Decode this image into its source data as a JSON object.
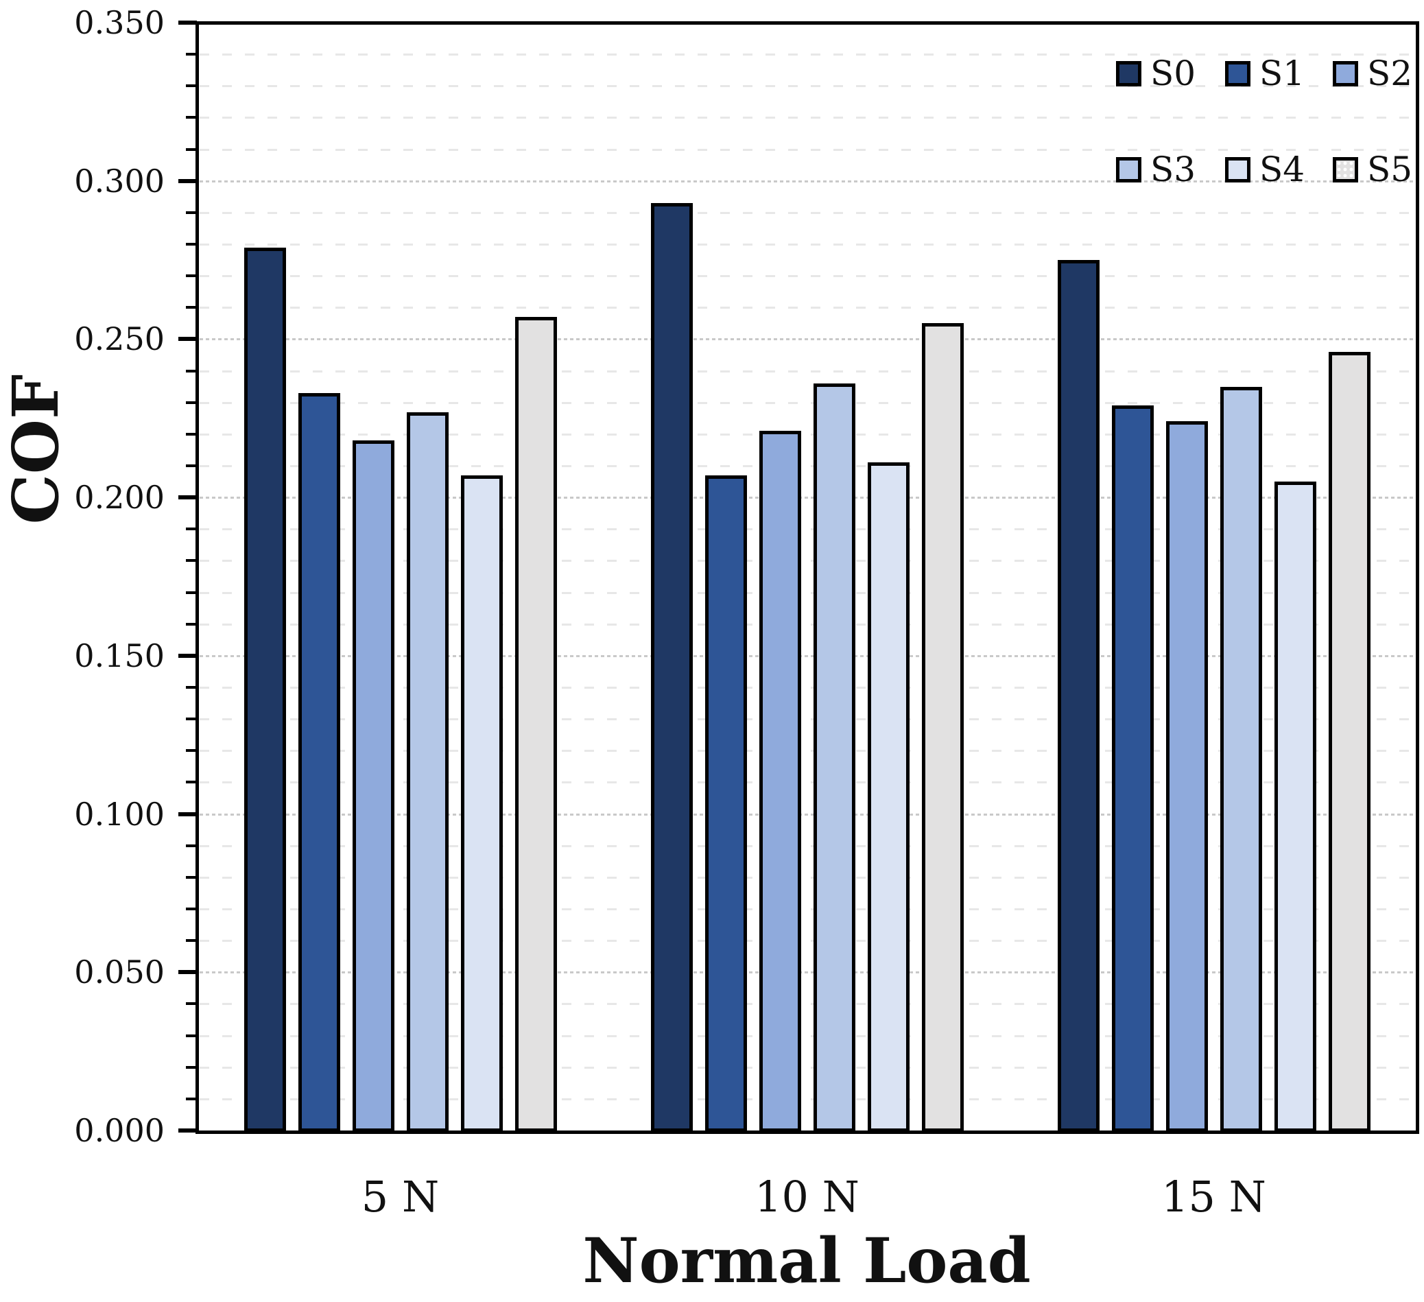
{
  "chart_data": {
    "type": "bar",
    "title": "",
    "xlabel": "Normal Load",
    "ylabel": "COF",
    "categories": [
      "5 N",
      "10 N",
      "15 N"
    ],
    "series": [
      {
        "name": "S0",
        "color": "#1F3864",
        "texture": "solid",
        "values": [
          0.279,
          0.293,
          0.275
        ]
      },
      {
        "name": "S1",
        "color": "#2E5596",
        "texture": "solid",
        "values": [
          0.233,
          0.207,
          0.229
        ]
      },
      {
        "name": "S2",
        "color": "#8FAADC",
        "texture": "solid",
        "values": [
          0.218,
          0.221,
          0.224
        ]
      },
      {
        "name": "S3",
        "color": "#B4C7E7",
        "texture": "solid",
        "values": [
          0.227,
          0.236,
          0.235
        ]
      },
      {
        "name": "S4",
        "color": "#DAE3F3",
        "texture": "solid",
        "values": [
          0.207,
          0.211,
          0.205
        ]
      },
      {
        "name": "S5",
        "color": "#E2E1E1",
        "texture": "dots",
        "values": [
          0.257,
          0.255,
          0.246
        ]
      }
    ],
    "ylim": [
      0,
      0.35
    ],
    "ytick_step_major": 0.05,
    "ytick_step_minor": 0.01,
    "ytick_labels": [
      "0.000",
      "0.050",
      "0.100",
      "0.150",
      "0.200",
      "0.250",
      "0.300",
      "0.350"
    ],
    "grid": "major-dotted, minor-dashed, horizontal only",
    "legend_position": "top-right-inside",
    "legend_rows": [
      [
        "S0",
        "S1",
        "S2"
      ],
      [
        "S3",
        "S4",
        "S5"
      ]
    ],
    "colors": {
      "axis": "#000000",
      "grid_major": "#c9c9c9",
      "grid_minor": "#e7e7e7",
      "background": "#ffffff"
    }
  }
}
